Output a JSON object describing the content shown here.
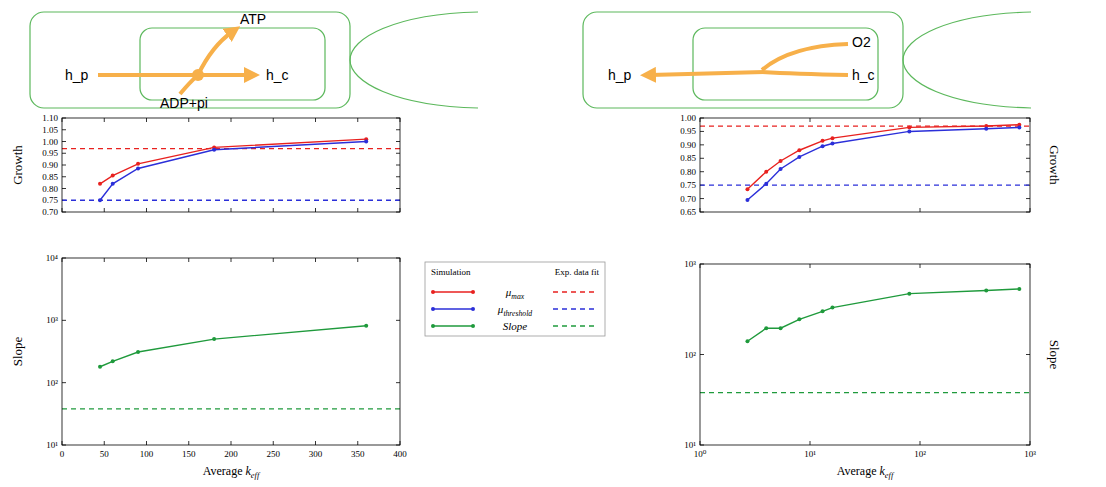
{
  "legend_box": {
    "headers": [
      "Simulation",
      "Exp. data fit"
    ]
  },
  "diagrams": [
    {
      "labels": [
        "h_p",
        "ATP",
        "h_c",
        "ADP+pi"
      ]
    },
    {
      "labels": [
        "h_p",
        "O2",
        "h_c"
      ]
    }
  ],
  "chart_data": [
    {
      "type": "line",
      "ylabel": "Growth",
      "x": [
        45,
        60,
        90,
        180,
        360
      ],
      "xlim": [
        0,
        400
      ],
      "xticks": [
        0,
        50,
        100,
        150,
        200,
        250,
        300,
        350,
        400
      ],
      "ylim": [
        0.7,
        1.1
      ],
      "yticks": [
        {
          "value": 0.7,
          "label": "0.70"
        },
        0.75,
        {
          "value": 0.8,
          "label": "0.80"
        },
        0.85,
        {
          "value": 0.9,
          "label": "0.90"
        },
        0.95,
        {
          "value": 1.0,
          "label": "1.00"
        },
        1.05,
        {
          "value": 1.1,
          "label": "1.10"
        }
      ],
      "tick_labels": "y",
      "marker": "circle",
      "series": [
        {
          "name": "μmax",
          "color": "#e8211f",
          "values": [
            0.82,
            0.855,
            0.905,
            0.975,
            1.01
          ],
          "fit": 0.97
        },
        {
          "name": "μthreshold",
          "color": "#2b2fd9",
          "values": [
            0.75,
            0.82,
            0.885,
            0.965,
            1.0
          ],
          "fit": 0.75
        }
      ]
    },
    {
      "type": "line",
      "ylabel": "Slope",
      "xlabel": "Average keff",
      "x": [
        45,
        60,
        90,
        180,
        360
      ],
      "xlim": [
        0,
        400
      ],
      "xticks": [
        0,
        50,
        100,
        150,
        200,
        250,
        300,
        350,
        400
      ],
      "log": "y",
      "ylim": [
        10,
        10000
      ],
      "yticks": [
        {
          "value": 10,
          "label": "10¹"
        },
        {
          "value": 100,
          "label": "10²"
        },
        {
          "value": 1000,
          "label": "10³"
        },
        {
          "value": 10000,
          "label": "10⁴"
        }
      ],
      "marker": "circle",
      "series": [
        {
          "name": "Slope",
          "color": "#1f9a3c",
          "values": [
            180,
            220,
            310,
            500,
            820
          ],
          "fit": 38
        }
      ]
    },
    {
      "type": "line",
      "ylabel": "Growth",
      "x": [
        2.7,
        4,
        5.4,
        8,
        13,
        16,
        80,
        400,
        800
      ],
      "xlim": [
        1,
        1000
      ],
      "xticks": [
        {
          "value": 1,
          "label": "10⁰"
        },
        {
          "value": 10,
          "label": "10¹"
        },
        {
          "value": 100,
          "label": "10²"
        },
        {
          "value": 1000,
          "label": "10³"
        }
      ],
      "log": "x",
      "ylim": [
        0.65,
        1.0
      ],
      "yticks": [
        0.65,
        {
          "value": 0.7,
          "label": "0.70"
        },
        0.75,
        {
          "value": 0.8,
          "label": "0.80"
        },
        0.85,
        {
          "value": 0.9,
          "label": "0.90"
        },
        0.95,
        {
          "value": 1.0,
          "label": "1.00"
        }
      ],
      "tick_labels": "y",
      "marker": "circle",
      "series": [
        {
          "name": "μmax",
          "color": "#e8211f",
          "values": [
            0.735,
            0.8,
            0.84,
            0.88,
            0.915,
            0.925,
            0.965,
            0.97,
            0.975
          ],
          "fit": 0.97
        },
        {
          "name": "μthreshold",
          "color": "#2b2fd9",
          "values": [
            0.695,
            0.755,
            0.81,
            0.855,
            0.895,
            0.905,
            0.95,
            0.96,
            0.965
          ],
          "fit": 0.75
        }
      ]
    },
    {
      "type": "line",
      "ylabel": "Slope",
      "xlabel": "Average keff",
      "x": [
        2.7,
        4,
        5.4,
        8,
        13,
        16,
        80,
        400,
        800
      ],
      "xlim": [
        1,
        1000
      ],
      "xticks": [
        {
          "value": 1,
          "label": "10⁰"
        },
        {
          "value": 10,
          "label": "10¹"
        },
        {
          "value": 100,
          "label": "10²"
        },
        {
          "value": 1000,
          "label": "10³"
        }
      ],
      "log": true,
      "ylim": [
        10,
        1000
      ],
      "yticks": [
        {
          "value": 10,
          "label": "10¹"
        },
        {
          "value": 100,
          "label": "10²"
        },
        {
          "value": 1000,
          "label": "10³"
        }
      ],
      "marker": "circle",
      "series": [
        {
          "name": "Slope",
          "color": "#1f9a3c",
          "values": [
            140,
            195,
            195,
            245,
            300,
            330,
            470,
            510,
            530
          ],
          "fit": 38
        }
      ]
    }
  ]
}
